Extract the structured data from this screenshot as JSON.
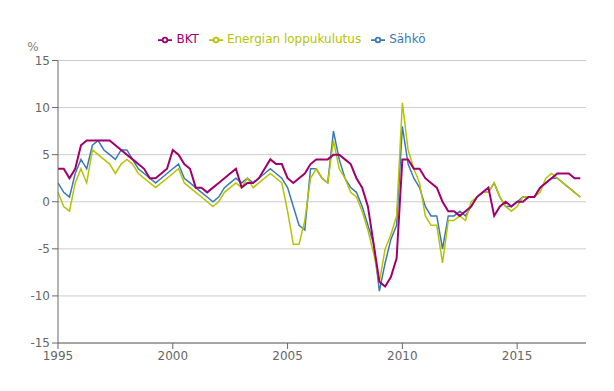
{
  "chart_data": {
    "type": "line",
    "ylabel": "%",
    "x": [
      1995.0,
      1995.25,
      1995.5,
      1995.75,
      1996.0,
      1996.25,
      1996.5,
      1996.75,
      1997.0,
      1997.25,
      1997.5,
      1997.75,
      1998.0,
      1998.25,
      1998.5,
      1998.75,
      1999.0,
      1999.25,
      1999.5,
      1999.75,
      2000.0,
      2000.25,
      2000.5,
      2000.75,
      2001.0,
      2001.25,
      2001.5,
      2001.75,
      2002.0,
      2002.25,
      2002.5,
      2002.75,
      2003.0,
      2003.25,
      2003.5,
      2003.75,
      2004.0,
      2004.25,
      2004.5,
      2004.75,
      2005.0,
      2005.25,
      2005.5,
      2005.75,
      2006.0,
      2006.25,
      2006.5,
      2006.75,
      2007.0,
      2007.25,
      2007.5,
      2007.75,
      2008.0,
      2008.25,
      2008.5,
      2008.75,
      2009.0,
      2009.25,
      2009.5,
      2009.75,
      2010.0,
      2010.25,
      2010.5,
      2010.75,
      2011.0,
      2011.25,
      2011.5,
      2011.75,
      2012.0,
      2012.25,
      2012.5,
      2012.75,
      2013.0,
      2013.25,
      2013.5,
      2013.75,
      2014.0,
      2014.25,
      2014.5,
      2014.75,
      2015.0,
      2015.25,
      2015.5,
      2015.75,
      2016.0,
      2016.25,
      2016.5,
      2016.75,
      2017.0,
      2017.25,
      2017.5,
      2017.75
    ],
    "series": [
      {
        "name": "Sähkö",
        "color": "#3c78b5",
        "values": [
          2.0,
          1.0,
          0.5,
          3.0,
          4.5,
          3.5,
          6.0,
          6.5,
          5.5,
          5.0,
          4.5,
          5.5,
          5.5,
          4.5,
          3.5,
          3.0,
          2.5,
          2.0,
          2.5,
          3.0,
          3.5,
          4.0,
          2.5,
          2.0,
          1.5,
          1.0,
          0.5,
          0.0,
          0.5,
          1.5,
          2.0,
          2.5,
          2.0,
          2.5,
          2.0,
          2.5,
          3.0,
          3.5,
          3.0,
          2.5,
          1.5,
          -0.5,
          -2.5,
          -3.0,
          3.5,
          3.5,
          2.5,
          2.0,
          7.5,
          4.5,
          2.5,
          1.5,
          1.0,
          -0.5,
          -2.5,
          -4.5,
          -9.5,
          -6.5,
          -4.0,
          -2.5,
          8.0,
          4.0,
          2.5,
          1.5,
          -0.5,
          -1.5,
          -1.5,
          -5.0,
          -1.5,
          -1.5,
          -1.0,
          -1.5,
          -0.5,
          0.5,
          1.0,
          1.0,
          2.0,
          0.5,
          -0.5,
          -0.5,
          0.0,
          0.5,
          0.5,
          0.5,
          1.5,
          2.0,
          2.5,
          2.5,
          2.0,
          1.5,
          1.0,
          0.5
        ]
      },
      {
        "name": "Energian loppukulutus",
        "color": "#b5c400",
        "values": [
          1.0,
          -0.5,
          -1.0,
          2.0,
          3.5,
          2.0,
          5.5,
          5.0,
          4.5,
          4.0,
          3.0,
          4.0,
          4.5,
          4.0,
          3.0,
          2.5,
          2.0,
          1.5,
          2.0,
          2.5,
          3.0,
          3.5,
          2.0,
          1.5,
          1.0,
          0.5,
          0.0,
          -0.5,
          0.0,
          1.0,
          1.5,
          2.0,
          1.5,
          2.5,
          1.5,
          2.0,
          2.5,
          3.0,
          2.5,
          2.0,
          -1.0,
          -4.5,
          -4.5,
          -2.0,
          2.5,
          3.5,
          2.5,
          2.0,
          6.5,
          3.5,
          2.5,
          1.0,
          0.5,
          -1.0,
          -3.0,
          -5.5,
          -8.5,
          -5.0,
          -3.5,
          -1.5,
          10.5,
          5.5,
          3.5,
          2.0,
          -1.5,
          -2.5,
          -2.5,
          -6.5,
          -2.0,
          -2.0,
          -1.5,
          -2.0,
          0.0,
          0.5,
          1.0,
          1.0,
          2.0,
          0.5,
          -0.5,
          -1.0,
          -0.5,
          0.5,
          0.5,
          0.5,
          1.0,
          2.5,
          3.0,
          2.5,
          2.0,
          1.5,
          1.0,
          0.5
        ]
      },
      {
        "name": "BKT",
        "color": "#a0006e",
        "values": [
          3.5,
          3.5,
          2.5,
          3.5,
          6.0,
          6.5,
          6.5,
          6.5,
          6.5,
          6.5,
          6.0,
          5.5,
          5.0,
          4.5,
          4.0,
          3.5,
          2.5,
          2.5,
          3.0,
          3.5,
          5.5,
          5.0,
          4.0,
          3.5,
          1.5,
          1.5,
          1.0,
          1.5,
          2.0,
          2.5,
          3.0,
          3.5,
          1.5,
          2.0,
          2.0,
          2.5,
          3.5,
          4.5,
          4.0,
          4.0,
          2.5,
          2.0,
          2.5,
          3.0,
          4.0,
          4.5,
          4.5,
          4.5,
          5.0,
          5.0,
          4.5,
          4.0,
          2.5,
          1.5,
          -0.5,
          -4.5,
          -8.5,
          -9.0,
          -8.0,
          -6.0,
          4.5,
          4.5,
          3.5,
          3.5,
          2.5,
          2.0,
          1.5,
          0.0,
          -1.0,
          -1.0,
          -1.5,
          -1.0,
          -0.5,
          0.5,
          1.0,
          1.5,
          -1.5,
          -0.5,
          0.0,
          -0.5,
          0.0,
          0.0,
          0.5,
          0.5,
          1.5,
          2.0,
          2.5,
          3.0,
          3.0,
          3.0,
          2.5,
          2.5
        ]
      }
    ],
    "xlim": [
      1995,
      2018.0
    ],
    "xticks": [
      1995,
      2000,
      2005,
      2010,
      2015
    ],
    "ylim": [
      -15,
      15
    ],
    "yticks": [
      -15,
      -10,
      -5,
      0,
      5,
      10,
      15
    ],
    "grid": "y",
    "legend": "top"
  }
}
